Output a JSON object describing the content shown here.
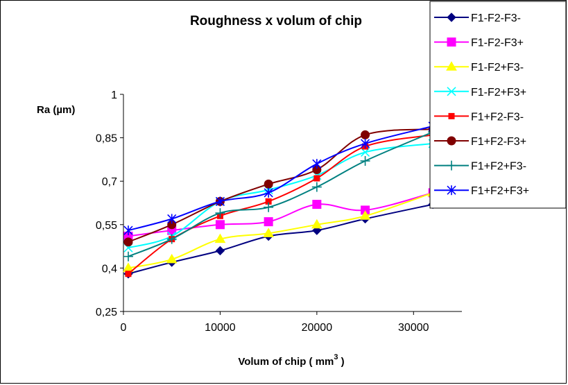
{
  "chart_data": {
    "type": "line",
    "title": "Roughness x volum of chip",
    "xlabel": "Volum of chip ( mm",
    "xlabel_sup": "3",
    "xlabel_end": " )",
    "ylabel": "Ra (µm)",
    "xlim": [
      0,
      35000
    ],
    "ylim": [
      0.25,
      1.0
    ],
    "x_ticks": [
      0,
      10000,
      20000,
      30000
    ],
    "y_ticks": [
      0.25,
      0.4,
      0.55,
      0.7,
      0.85,
      1.0
    ],
    "x_tick_labels": [
      "0",
      "10000",
      "20000",
      "30000"
    ],
    "y_tick_labels": [
      "0,25",
      "0,4",
      "0,55",
      "0,7",
      "0,85",
      "1"
    ],
    "grid": false,
    "legend_position": "right",
    "x": [
      500,
      5000,
      10000,
      15000,
      20000,
      25000,
      32000
    ],
    "series": [
      {
        "name": "F1-F2-F3-",
        "color": "#000080",
        "marker": "diamond",
        "values": [
          0.38,
          0.42,
          0.46,
          0.51,
          0.53,
          0.57,
          0.62
        ]
      },
      {
        "name": "F1-F2-F3+",
        "color": "#FF00FF",
        "marker": "square",
        "values": [
          0.51,
          0.53,
          0.55,
          0.56,
          0.62,
          0.6,
          0.66
        ]
      },
      {
        "name": "F1-F2+F3-",
        "color": "#FFFF00",
        "marker": "triangle",
        "values": [
          0.4,
          0.43,
          0.5,
          0.52,
          0.55,
          0.58,
          0.66
        ]
      },
      {
        "name": "F1-F2+F3+",
        "color": "#00FFFF",
        "marker": "x",
        "values": [
          0.47,
          0.51,
          0.63,
          0.67,
          0.72,
          0.8,
          0.83
        ]
      },
      {
        "name": "F1+F2-F3-",
        "color": "#FF0000",
        "marker": "smallsquare",
        "values": [
          0.38,
          0.5,
          0.58,
          0.63,
          0.71,
          0.82,
          0.86
        ]
      },
      {
        "name": "F1+F2-F3+",
        "color": "#800000",
        "marker": "circle",
        "values": [
          0.49,
          0.55,
          0.63,
          0.69,
          0.74,
          0.86,
          0.88
        ]
      },
      {
        "name": "F1+F2+F3-",
        "color": "#008080",
        "marker": "plus",
        "values": [
          0.44,
          0.5,
          0.59,
          0.61,
          0.68,
          0.77,
          0.87
        ]
      },
      {
        "name": "F1+F2+F3+",
        "color": "#0000FF",
        "marker": "star",
        "values": [
          0.53,
          0.57,
          0.63,
          0.66,
          0.76,
          0.83,
          0.89
        ]
      }
    ]
  }
}
